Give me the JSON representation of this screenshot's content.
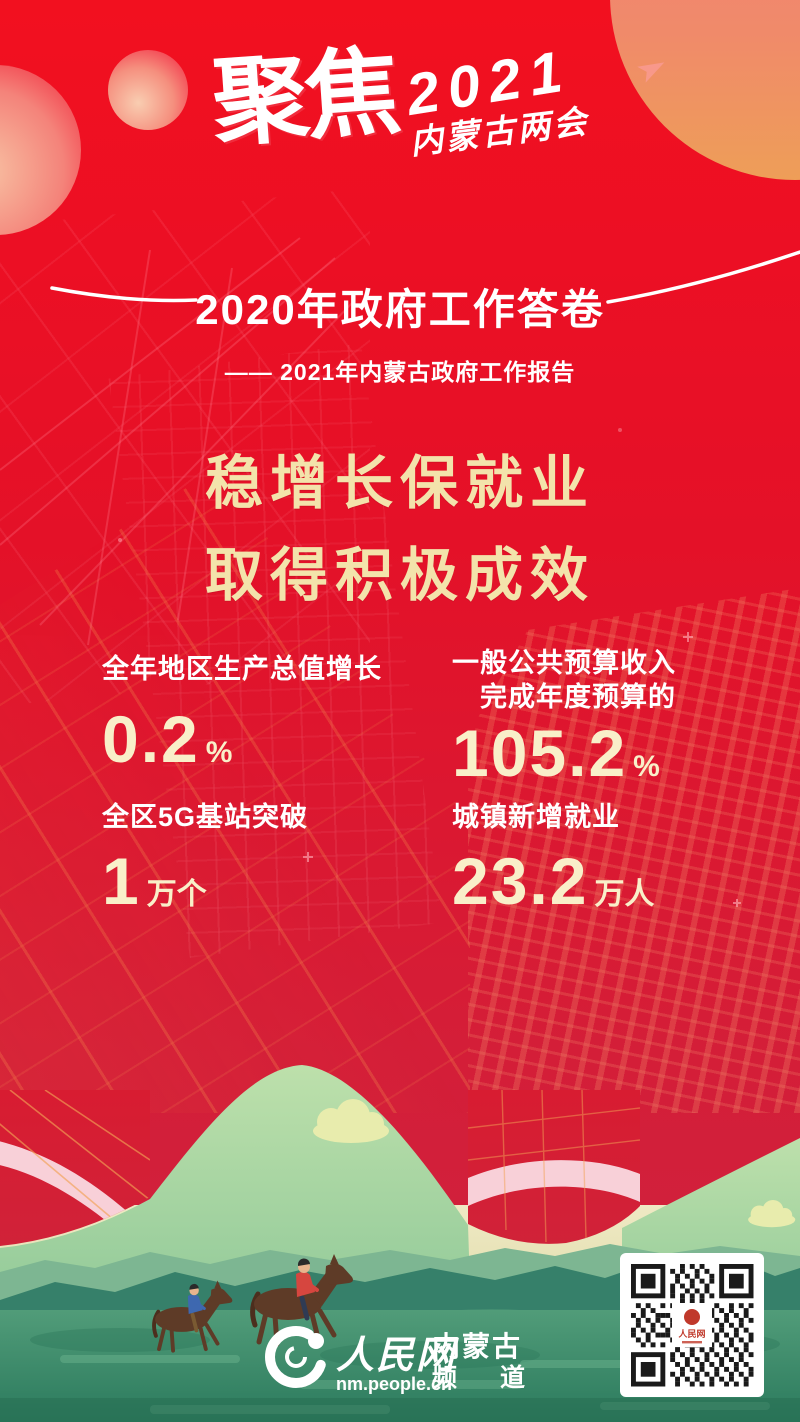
{
  "poster": {
    "brand": {
      "focus": "聚焦",
      "year": "2021",
      "event": "内蒙古两会"
    },
    "header": {
      "title": "2020年政府工作答卷",
      "subtitle": "—— 2021年内蒙古政府工作报告"
    },
    "headline": {
      "line1": "稳增长保就业",
      "line2": "取得积极成效"
    },
    "stats": [
      {
        "label_lines": [
          "全年地区生产总值增长"
        ],
        "value": "0.2",
        "unit": "%"
      },
      {
        "label_lines": [
          "一般公共预算收入",
          "完成年度预算的"
        ],
        "value": "105.2",
        "unit": "%"
      },
      {
        "label_lines": [
          "全区5G基站突破"
        ],
        "value": "1",
        "unit": "万个"
      },
      {
        "label_lines": [
          "城镇新增就业"
        ],
        "value": "23.2",
        "unit": "万人"
      }
    ],
    "footer": {
      "site_name": "人民网",
      "site_url": "nm.people.cn",
      "channel_line1": "内蒙古",
      "channel_line2": "频 道"
    },
    "colors": {
      "background_red": "#E8112６",
      "headline_gold": "#F3E3AB",
      "value_cream": "#F9EFC9",
      "hill_green": "#A9D8A2",
      "mountain_teal": "#36806A",
      "ribbon_pink": "#F8D0D8"
    }
  }
}
